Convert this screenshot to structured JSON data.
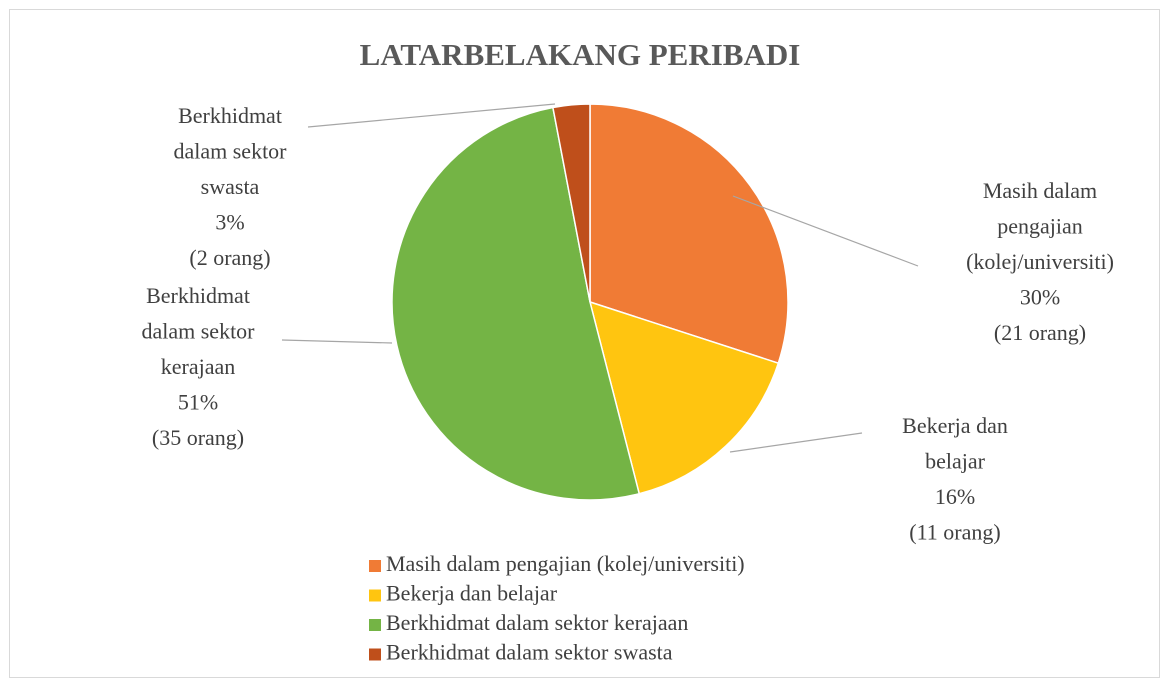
{
  "chart_data": {
    "type": "pie",
    "title": "LATARBELAKANG PERIBADI",
    "categories": [
      "Masih dalam pengajian (kolej/universiti)",
      "Bekerja dan belajar",
      "Berkhidmat dalam sektor kerajaan",
      "Berkhidmat dalam sektor swasta"
    ],
    "values": [
      30,
      16,
      51,
      3
    ],
    "value_labels": [
      "30%",
      "16%",
      "51%",
      "3%"
    ],
    "count_labels": [
      "(21 orang)",
      "(11 orang)",
      "(35 orang)",
      "(2 orang)"
    ],
    "colors": [
      "#f07b35",
      "#ffc510",
      "#74b445",
      "#bf4f1b"
    ],
    "legend": "bottom"
  }
}
